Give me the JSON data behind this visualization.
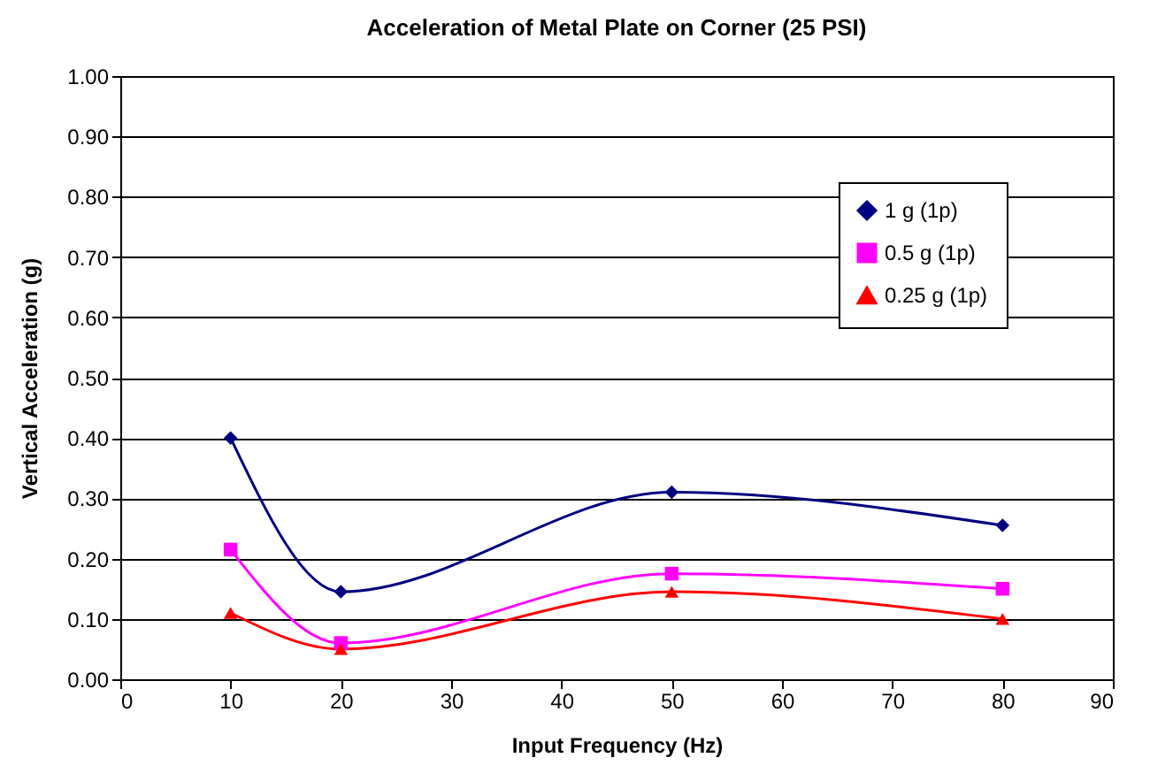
{
  "chart_data": {
    "type": "line",
    "title": "Acceleration of Metal Plate on Corner (25 PSI)",
    "xlabel": "Input Frequency (Hz)",
    "ylabel": "Vertical Acceleration (g)",
    "x": [
      10,
      20,
      50,
      80
    ],
    "series": [
      {
        "name": "1 g (1p)",
        "color": "#000080",
        "marker": "diamond",
        "values": [
          0.4,
          0.145,
          0.31,
          0.255
        ]
      },
      {
        "name": "0.5 g (1p)",
        "color": "#ff00ff",
        "marker": "square",
        "values": [
          0.215,
          0.06,
          0.175,
          0.15
        ]
      },
      {
        "name": "0.25 g (1p)",
        "color": "#ff0000",
        "marker": "triangle",
        "values": [
          0.11,
          0.05,
          0.145,
          0.1
        ]
      }
    ],
    "xlim": [
      0,
      90
    ],
    "xticks": [
      0,
      10,
      20,
      30,
      40,
      50,
      60,
      70,
      80,
      90
    ],
    "ylim": [
      0,
      1
    ],
    "yticks": [
      {
        "value": 0,
        "label": "0.00"
      },
      {
        "value": 0.1,
        "label": "0.10"
      },
      {
        "value": 0.2,
        "label": "0.20"
      },
      {
        "value": 0.3,
        "label": "0.30"
      },
      {
        "value": 0.4,
        "label": "0.40"
      },
      {
        "value": 0.5,
        "label": "0.50"
      },
      {
        "value": 0.6,
        "label": "0.60"
      },
      {
        "value": 0.7,
        "label": "0.70"
      },
      {
        "value": 0.8,
        "label": "0.80"
      },
      {
        "value": 0.9,
        "label": "0.90"
      },
      {
        "value": 1,
        "label": "1.00"
      }
    ],
    "grid": "y",
    "legend": "top right",
    "line_style": "solid"
  }
}
